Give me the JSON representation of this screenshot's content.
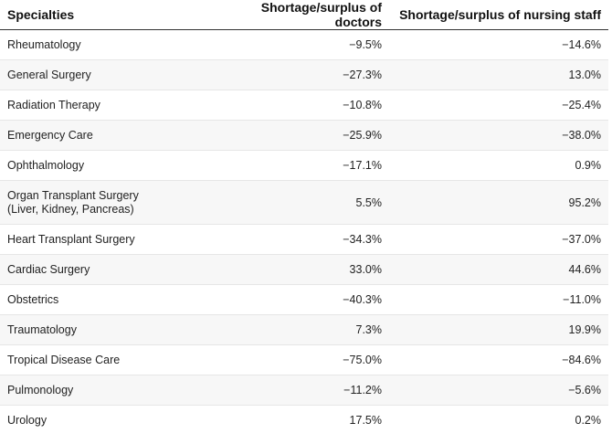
{
  "chart_data": {
    "type": "table",
    "columns": [
      "Specialties",
      "Shortage/surplus of doctors",
      "Shortage/surplus of nursing staff"
    ],
    "rows": [
      {
        "specialty": "Rheumatology",
        "doctors": "−9.5%",
        "nursing": "−14.6%"
      },
      {
        "specialty": "General Surgery",
        "doctors": "−27.3%",
        "nursing": "13.0%"
      },
      {
        "specialty": "Radiation Therapy",
        "doctors": "−10.8%",
        "nursing": "−25.4%"
      },
      {
        "specialty": "Emergency Care",
        "doctors": "−25.9%",
        "nursing": "−38.0%"
      },
      {
        "specialty": "Ophthalmology",
        "doctors": "−17.1%",
        "nursing": "0.9%"
      },
      {
        "specialty": "Organ Transplant Surgery\n(Liver, Kidney, Pancreas)",
        "doctors": "5.5%",
        "nursing": "95.2%"
      },
      {
        "specialty": "Heart Transplant Surgery",
        "doctors": "−34.3%",
        "nursing": "−37.0%"
      },
      {
        "specialty": "Cardiac Surgery",
        "doctors": "33.0%",
        "nursing": "44.6%"
      },
      {
        "specialty": "Obstetrics",
        "doctors": "−40.3%",
        "nursing": "−11.0%"
      },
      {
        "specialty": "Traumatology",
        "doctors": "7.3%",
        "nursing": "19.9%"
      },
      {
        "specialty": "Tropical Disease Care",
        "doctors": "−75.0%",
        "nursing": "−84.6%"
      },
      {
        "specialty": "Pulmonology",
        "doctors": "−11.2%",
        "nursing": "−5.6%"
      },
      {
        "specialty": "Urology",
        "doctors": "17.5%",
        "nursing": "0.2%"
      }
    ]
  }
}
